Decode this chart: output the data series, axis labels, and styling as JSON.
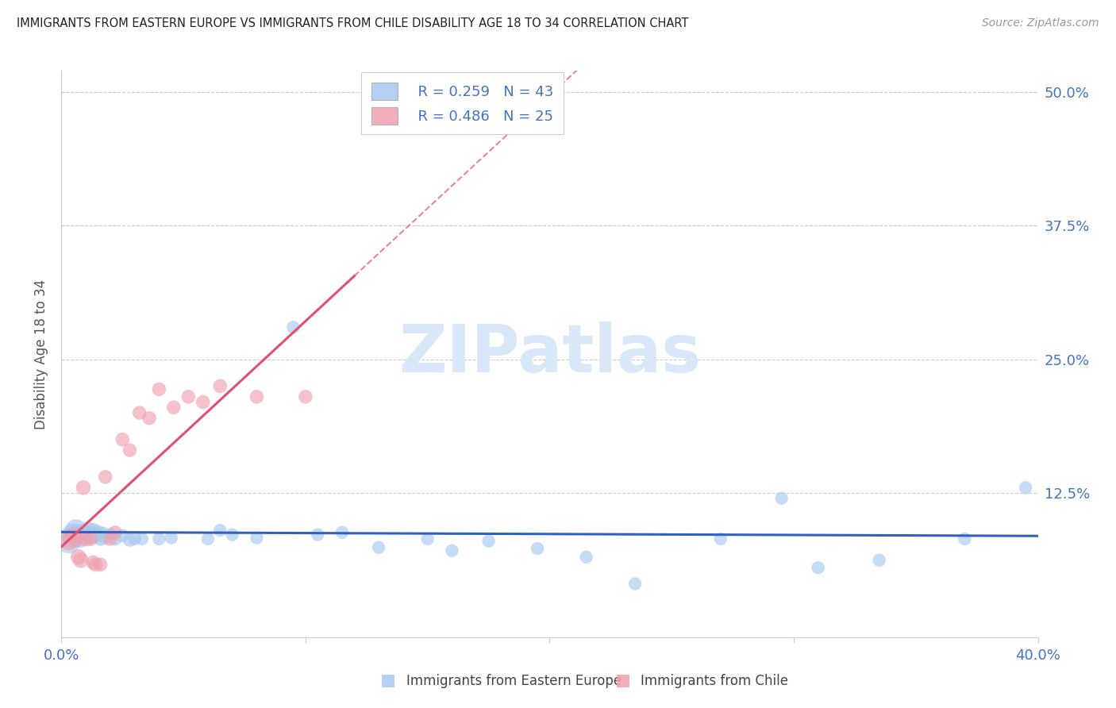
{
  "title": "IMMIGRANTS FROM EASTERN EUROPE VS IMMIGRANTS FROM CHILE DISABILITY AGE 18 TO 34 CORRELATION CHART",
  "source": "Source: ZipAtlas.com",
  "xlabel_blue": "Immigrants from Eastern Europe",
  "xlabel_pink": "Immigrants from Chile",
  "ylabel": "Disability Age 18 to 34",
  "r_blue": 0.259,
  "n_blue": 43,
  "r_pink": 0.486,
  "n_pink": 25,
  "x_min": 0.0,
  "x_max": 0.4,
  "y_min": -0.01,
  "y_max": 0.52,
  "ytick_vals": [
    0.0,
    0.125,
    0.25,
    0.375,
    0.5
  ],
  "ytick_labels_right": [
    "",
    "12.5%",
    "25.0%",
    "37.5%",
    "50.0%"
  ],
  "xtick_vals": [
    0.0,
    0.1,
    0.2,
    0.3,
    0.4
  ],
  "xtick_labels": [
    "0.0%",
    "",
    "",
    "",
    "40.0%"
  ],
  "color_blue": "#A8C8F0",
  "color_pink": "#F0A0B0",
  "trend_blue_color": "#3060C0",
  "trend_pink_color": "#E05070",
  "watermark_color": "#D0E4F8",
  "bg_color": "#ffffff",
  "grid_color": "#cccccc",
  "title_color": "#222222",
  "source_color": "#999999",
  "axis_label_color": "#4472C4",
  "ylabel_color": "#555555",
  "blue_x": [
    0.003,
    0.005,
    0.006,
    0.007,
    0.008,
    0.009,
    0.01,
    0.011,
    0.012,
    0.013,
    0.014,
    0.015,
    0.016,
    0.017,
    0.018,
    0.02,
    0.022,
    0.025,
    0.028,
    0.03,
    0.033,
    0.04,
    0.045,
    0.06,
    0.065,
    0.07,
    0.08,
    0.095,
    0.105,
    0.115,
    0.13,
    0.15,
    0.16,
    0.175,
    0.195,
    0.215,
    0.235,
    0.27,
    0.295,
    0.31,
    0.335,
    0.37,
    0.395
  ],
  "blue_y": [
    0.08,
    0.085,
    0.09,
    0.087,
    0.082,
    0.088,
    0.086,
    0.091,
    0.084,
    0.09,
    0.085,
    0.088,
    0.082,
    0.087,
    0.083,
    0.086,
    0.082,
    0.085,
    0.081,
    0.082,
    0.082,
    0.082,
    0.083,
    0.082,
    0.09,
    0.086,
    0.083,
    0.28,
    0.086,
    0.088,
    0.074,
    0.082,
    0.071,
    0.08,
    0.073,
    0.065,
    0.04,
    0.082,
    0.12,
    0.055,
    0.062,
    0.082,
    0.13
  ],
  "blue_sizes": [
    500,
    500,
    400,
    300,
    250,
    250,
    200,
    200,
    180,
    180,
    180,
    180,
    160,
    160,
    160,
    150,
    150,
    150,
    150,
    140,
    140,
    140,
    140,
    140,
    140,
    140,
    140,
    140,
    140,
    140,
    140,
    140,
    140,
    140,
    140,
    140,
    140,
    140,
    140,
    140,
    140,
    140,
    140
  ],
  "pink_x": [
    0.003,
    0.005,
    0.006,
    0.007,
    0.008,
    0.009,
    0.01,
    0.012,
    0.013,
    0.014,
    0.016,
    0.018,
    0.02,
    0.022,
    0.025,
    0.028,
    0.032,
    0.036,
    0.04,
    0.046,
    0.052,
    0.058,
    0.065,
    0.08,
    0.1
  ],
  "pink_y": [
    0.08,
    0.085,
    0.082,
    0.065,
    0.062,
    0.13,
    0.082,
    0.082,
    0.06,
    0.058,
    0.058,
    0.14,
    0.082,
    0.088,
    0.175,
    0.165,
    0.2,
    0.195,
    0.222,
    0.205,
    0.215,
    0.21,
    0.225,
    0.215,
    0.215
  ],
  "pink_sizes": [
    280,
    250,
    220,
    200,
    200,
    180,
    180,
    170,
    170,
    170,
    160,
    160,
    160,
    160,
    160,
    160,
    160,
    160,
    160,
    160,
    160,
    160,
    160,
    160,
    160
  ]
}
